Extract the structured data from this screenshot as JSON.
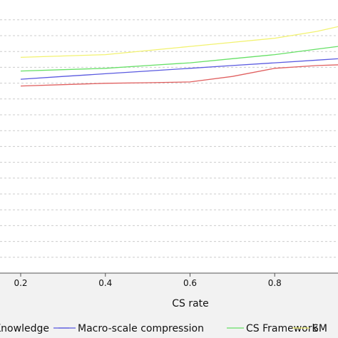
{
  "chart_data": {
    "type": "line",
    "title": "",
    "xlabel": "CS rate",
    "ylabel": "",
    "x": [
      0.2,
      0.3,
      0.4,
      0.5,
      0.6,
      0.7,
      0.8,
      0.9,
      1.0
    ],
    "xticks": [
      "0.2",
      "0.4",
      "0.6",
      "0.8"
    ],
    "xlim": [
      0.2,
      1.0
    ],
    "ylim": [
      0,
      1
    ],
    "grid": true,
    "legend_position": "bottom",
    "series": [
      {
        "name": "Knowledge",
        "color": "#d4d4d4",
        "values": [
          null,
          null,
          null,
          null,
          null,
          null,
          null,
          null,
          null
        ]
      },
      {
        "name": "Macro-scale compression",
        "color": "#5a5ae0",
        "values": [
          0.71,
          0.72,
          0.73,
          0.74,
          0.75,
          0.76,
          0.77,
          0.78,
          0.79
        ]
      },
      {
        "name": "CS Framework",
        "color": "#66e066",
        "values": [
          0.74,
          0.745,
          0.75,
          0.76,
          0.77,
          0.785,
          0.8,
          0.82,
          0.84
        ]
      },
      {
        "name": "SM",
        "color": "#f2f270",
        "values": [
          0.79,
          0.795,
          0.8,
          0.815,
          0.83,
          0.845,
          0.86,
          0.885,
          0.92
        ]
      },
      {
        "name": "",
        "color": "#e06060",
        "values": [
          0.685,
          0.69,
          0.695,
          0.697,
          0.7,
          0.72,
          0.75,
          0.76,
          0.765
        ]
      }
    ]
  }
}
